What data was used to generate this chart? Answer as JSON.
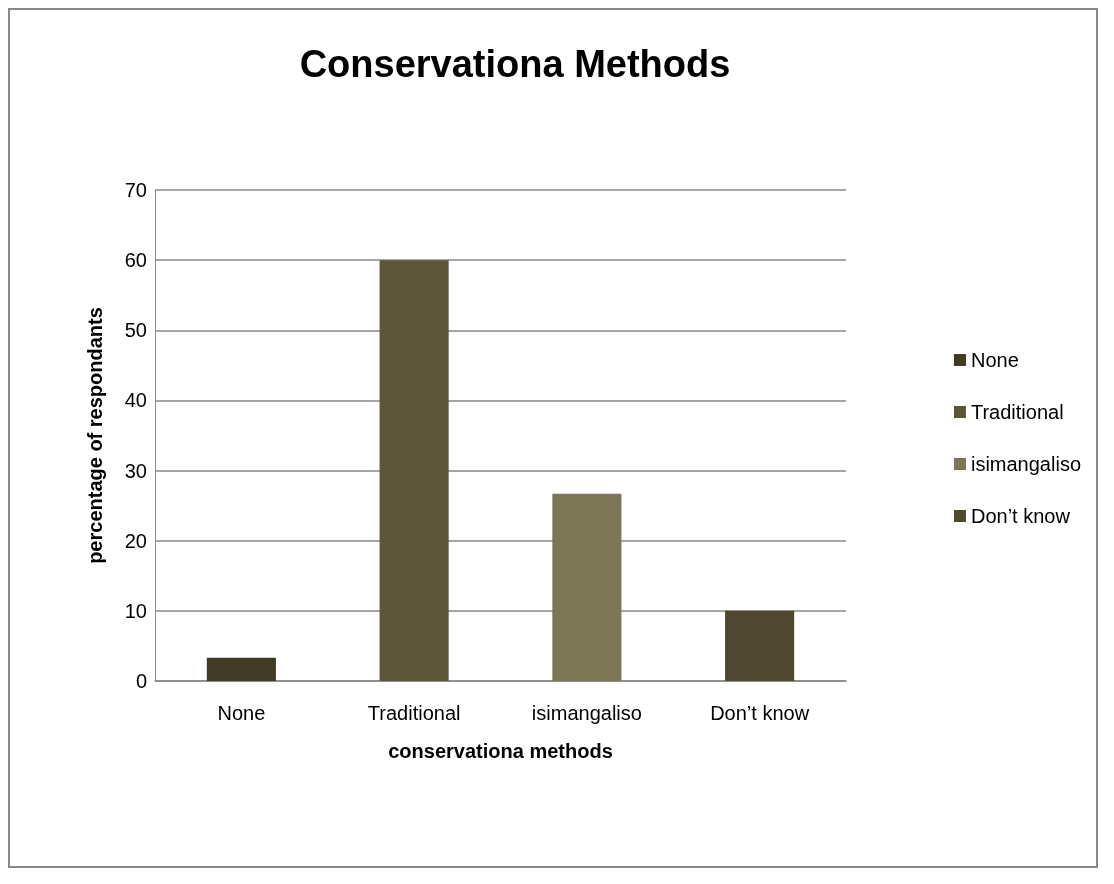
{
  "chart_data": {
    "type": "bar",
    "title": "Conservationa Methods",
    "xlabel": "conservationa methods",
    "ylabel": "percentage of respondants",
    "categories": [
      "None",
      "Traditional",
      "isimangaliso",
      "Don’t know"
    ],
    "series": [
      {
        "name": "None",
        "color": "#403b24",
        "values": [
          3.3,
          null,
          null,
          null
        ]
      },
      {
        "name": "Traditional",
        "color": "#5c5638",
        "values": [
          null,
          60,
          null,
          null
        ]
      },
      {
        "name": "isimangaliso",
        "color": "#7d7656",
        "values": [
          null,
          null,
          26.7,
          null
        ]
      },
      {
        "name": "Don’t know",
        "color": "#4e4830",
        "values": [
          null,
          null,
          null,
          10
        ]
      }
    ],
    "ylim": [
      0,
      70
    ],
    "yticks": [
      0,
      10,
      20,
      30,
      40,
      50,
      60,
      70
    ],
    "grid": "y",
    "legend": "right"
  }
}
